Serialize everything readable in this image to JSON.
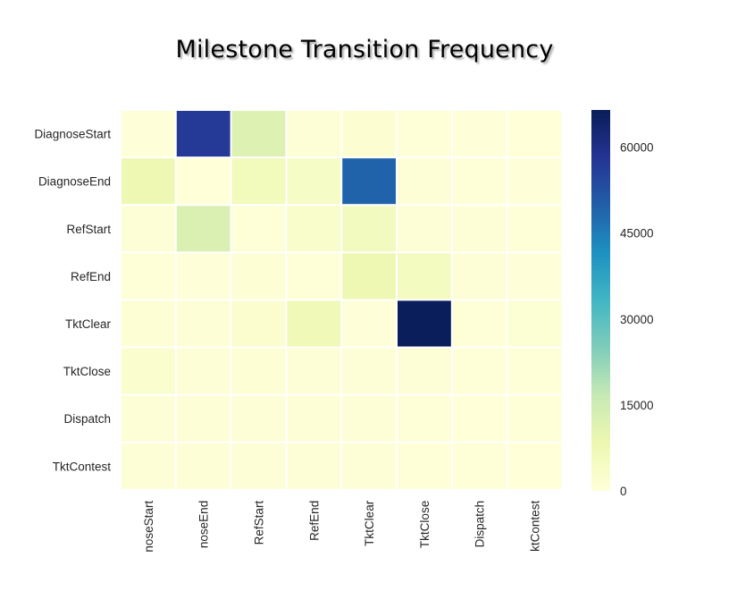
{
  "chart_data": {
    "type": "heatmap",
    "title": "Milestone Transition Frequency",
    "rows": [
      "DiagnoseStart",
      "DiagnoseEnd",
      "RefStart",
      "RefEnd",
      "TktClear",
      "TktClose",
      "Dispatch",
      "TktContest"
    ],
    "cols": [
      "DiagnoseStart",
      "DiagnoseEnd",
      "RefStart",
      "RefEnd",
      "TktClear",
      "TktClose",
      "Dispatch",
      "TktContest"
    ],
    "col_tick_labels": [
      "noseStart",
      "noseEnd",
      "RefStart",
      "RefEnd",
      "TktClear",
      "TktClose",
      "Dispatch",
      "ktContest"
    ],
    "values": [
      [
        300,
        57000,
        12000,
        900,
        1500,
        400,
        300,
        200
      ],
      [
        8000,
        200,
        6000,
        4000,
        49000,
        600,
        500,
        300
      ],
      [
        600,
        12500,
        500,
        3000,
        5500,
        700,
        600,
        400
      ],
      [
        400,
        300,
        1000,
        500,
        8000,
        5000,
        600,
        300
      ],
      [
        1000,
        800,
        2000,
        7000,
        300,
        66000,
        400,
        1200
      ],
      [
        2500,
        900,
        1000,
        800,
        700,
        600,
        500,
        400
      ],
      [
        700,
        800,
        800,
        800,
        900,
        500,
        200,
        400
      ],
      [
        600,
        700,
        700,
        700,
        900,
        500,
        500,
        200
      ]
    ],
    "colorbar": {
      "min": 0,
      "max": 66500,
      "ticks": [
        0,
        15000,
        30000,
        45000,
        60000
      ],
      "colormap": "YlGnBu"
    },
    "grid": false,
    "cell_separators": "white"
  }
}
